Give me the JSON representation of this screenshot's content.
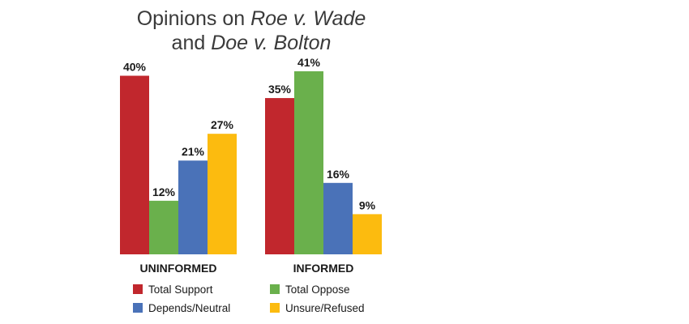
{
  "chart_data": {
    "type": "bar",
    "title": {
      "line1_prefix": "Opinions on ",
      "line1_italic": "Roe v. Wade",
      "line2_prefix": "and ",
      "line2_italic": "Doe v. Bolton"
    },
    "categories": [
      "UNINFORMED",
      "INFORMED"
    ],
    "series": [
      {
        "name": "Total Support",
        "color": "#c1272d",
        "values": [
          40,
          35
        ],
        "labels": [
          "40%",
          "35%"
        ]
      },
      {
        "name": "Total Oppose",
        "color": "#6ab04c",
        "values": [
          12,
          41
        ],
        "labels": [
          "12%",
          "41%"
        ]
      },
      {
        "name": "Depends/Neutral",
        "color": "#4a72b8",
        "values": [
          21,
          16
        ],
        "labels": [
          "21%",
          "16%"
        ]
      },
      {
        "name": "Unsure/Refused",
        "color": "#fcbb0f",
        "values": [
          27,
          9
        ],
        "labels": [
          "27%",
          "9%"
        ]
      }
    ],
    "ylim": [
      0,
      41
    ],
    "grid": false,
    "legend": "bottom",
    "xlabel": "",
    "ylabel": ""
  }
}
